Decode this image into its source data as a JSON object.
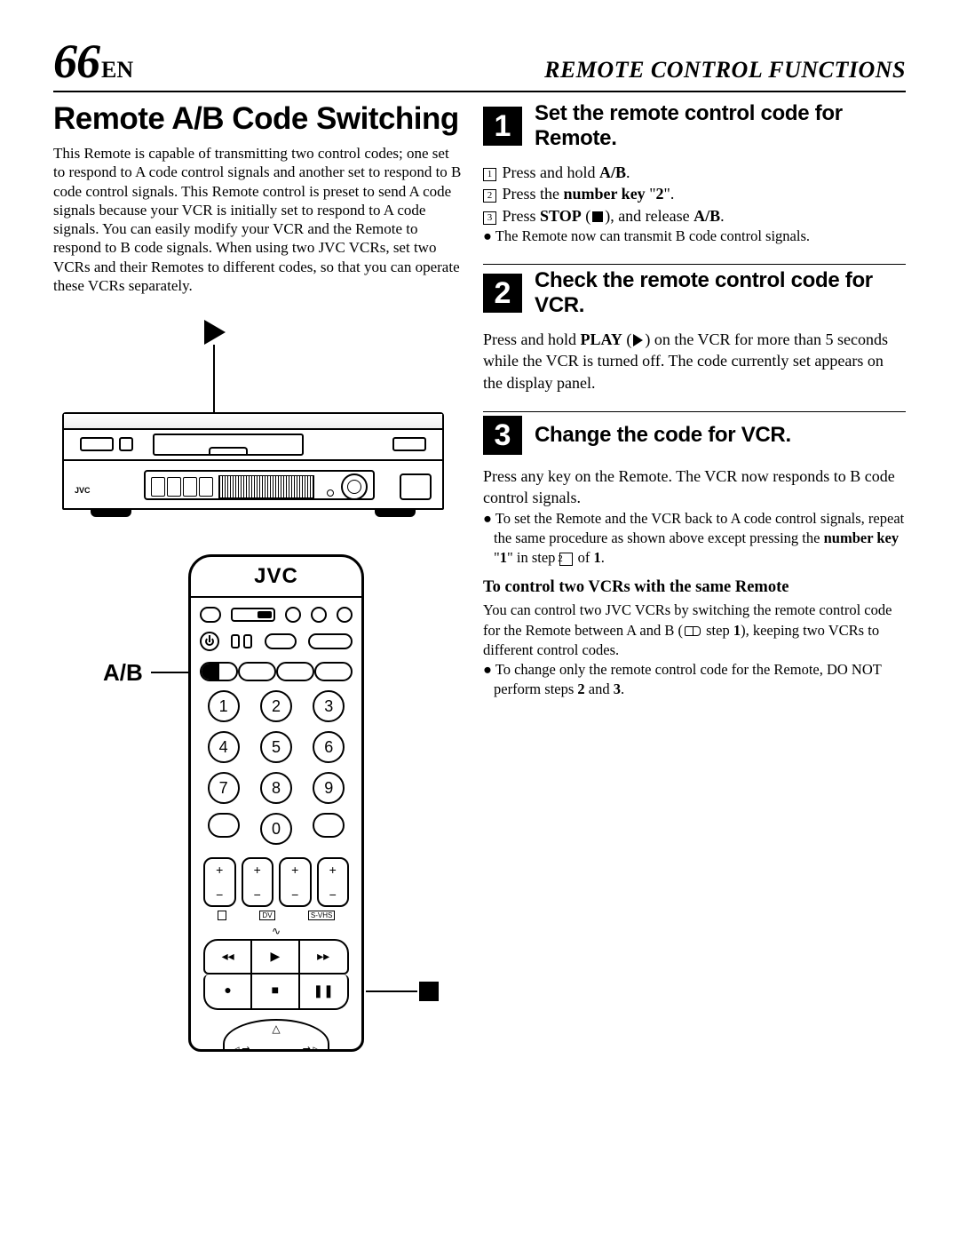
{
  "page": {
    "number": "66",
    "lang": "EN",
    "header": "REMOTE CONTROL FUNCTIONS"
  },
  "left": {
    "title": "Remote A/B Code Switching",
    "intro": "This Remote is capable of transmitting two control codes; one set to respond to A code control signals and another set to respond to B code control signals. This Remote control is preset to send A code signals because your VCR is initially set to respond to A code signals. You can easily modify your VCR and the Remote to respond to B code signals. When using two JVC VCRs, set two VCRs and their Remotes to different codes, so that you can operate these VCRs separately.",
    "vcr_brand": "JVC",
    "remote_brand": "JVC",
    "ab_label": "A/B",
    "numpad": [
      "1",
      "2",
      "3",
      "4",
      "5",
      "6",
      "7",
      "8",
      "9",
      "",
      "0",
      ""
    ],
    "rocker_labels": [
      "",
      "DV",
      "S-VHS"
    ]
  },
  "steps": [
    {
      "num": "1",
      "title": "Set the remote control code for Remote.",
      "lines": [
        {
          "box": "1",
          "html": "Press and hold <b>A/B</b>."
        },
        {
          "box": "2",
          "html": "Press the <b>number key</b> \"<b>2</b>\"."
        },
        {
          "box": "3",
          "html": "Press <b>STOP</b> (<span class='stop-sq'></span>), and release <b>A/B</b>."
        }
      ],
      "bullets": [
        "The Remote now can transmit B code control signals."
      ]
    },
    {
      "num": "2",
      "title": "Check the remote control code for VCR.",
      "body_html": "Press and hold <b>PLAY</b> (<span class='play-tri'></span>) on the VCR for more than 5 seconds while the VCR is turned off. The code currently set appears on the display panel."
    },
    {
      "num": "3",
      "title": "Change the code for VCR.",
      "body_html": "Press any key on the Remote. The VCR now responds to B code control signals.",
      "sub_bullets_html": [
        "To set the Remote and the VCR back to A code control signals, repeat the same procedure as shown above except pressing the <b>number key</b> \"<b>1</b>\" in step <span class='boxed-num'>2</span> of <b>1</b>."
      ],
      "subhead": "To control two VCRs with the same Remote",
      "subbody_html": "You can control two JVC VCRs by switching the remote control code for the Remote between A and B (<span class='book-icon'></span> step <b>1</b>), keeping two VCRs to different control codes.",
      "sub_bullets2_html": [
        "To change only the remote control code for the Remote, DO NOT perform steps <b>2</b> and <b>3</b>."
      ]
    }
  ]
}
